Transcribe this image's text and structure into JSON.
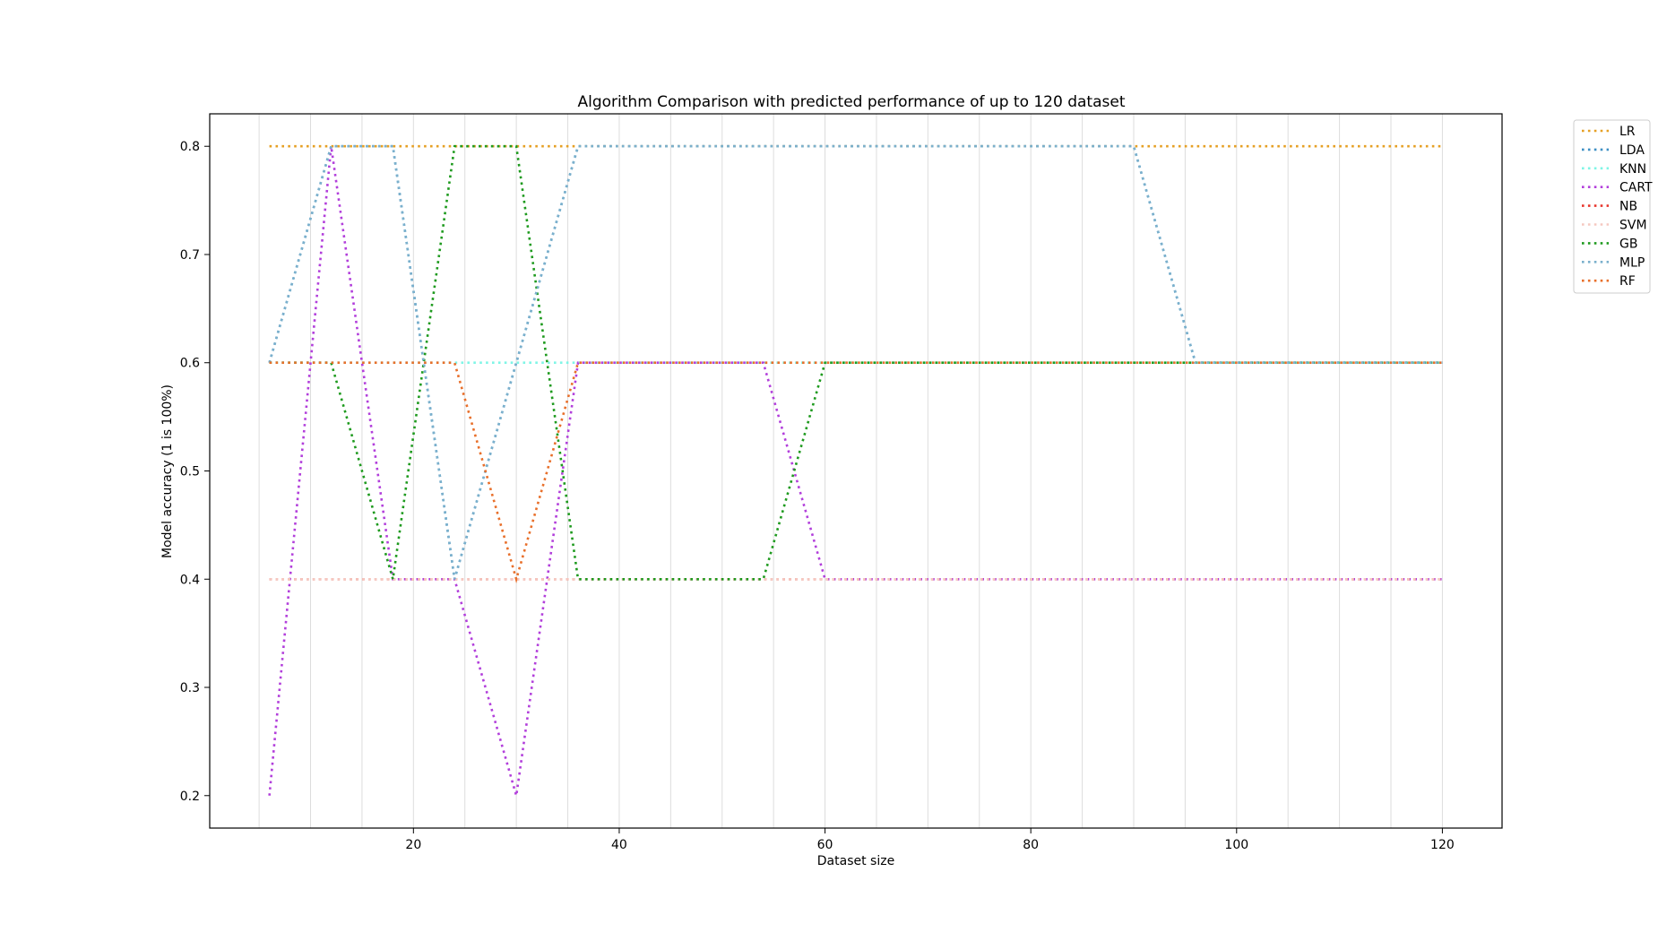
{
  "chart_data": {
    "type": "line",
    "title": "Algorithm Comparison with predicted performance of up to 120 dataset",
    "xlabel": "Dataset size",
    "ylabel": "Model accuracy (1 is 100%)",
    "xlim": [
      0.2,
      125.8
    ],
    "ylim": [
      0.17,
      0.83
    ],
    "xticks": [
      20,
      40,
      60,
      80,
      100,
      120
    ],
    "yticks": [
      0.2,
      0.3,
      0.4,
      0.5,
      0.6,
      0.7,
      0.8
    ],
    "vertical_gridlines": [
      5,
      10,
      15,
      20,
      25,
      30,
      35,
      40,
      45,
      50,
      55,
      60,
      65,
      70,
      75,
      80,
      85,
      90,
      95,
      100,
      105,
      110,
      115,
      120
    ],
    "grid": "vertical only",
    "line_style": "dotted",
    "legend_position": "outside top-right",
    "x": [
      6,
      12,
      18,
      24,
      30,
      36,
      42,
      48,
      54,
      60,
      66,
      72,
      78,
      84,
      90,
      96,
      102,
      108,
      114,
      120
    ],
    "series": [
      {
        "name": "LR",
        "color": "#e6a024",
        "values": [
          0.8,
          0.8,
          0.8,
          0.8,
          0.8,
          0.8,
          0.8,
          0.8,
          0.8,
          0.8,
          0.8,
          0.8,
          0.8,
          0.8,
          0.8,
          0.8,
          0.8,
          0.8,
          0.8,
          0.8
        ]
      },
      {
        "name": "LDA",
        "color": "#3d8fc4",
        "values": [
          0.6,
          0.8,
          0.8,
          0.4,
          0.6,
          0.8,
          0.8,
          0.8,
          0.8,
          0.8,
          0.8,
          0.8,
          0.8,
          0.8,
          0.8,
          0.6,
          0.6,
          0.6,
          0.6,
          0.6
        ]
      },
      {
        "name": "KNN",
        "color": "#7ff5e6",
        "values": [
          0.6,
          0.6,
          0.6,
          0.6,
          0.6,
          0.6,
          0.6,
          0.6,
          0.6,
          0.6,
          0.6,
          0.6,
          0.6,
          0.6,
          0.6,
          0.6,
          0.6,
          0.6,
          0.6,
          0.6
        ]
      },
      {
        "name": "CART",
        "color": "#b23fdb",
        "values": [
          0.2,
          0.8,
          0.4,
          0.4,
          0.2,
          0.6,
          0.6,
          0.6,
          0.6,
          0.4,
          0.4,
          0.4,
          0.4,
          0.4,
          0.4,
          0.4,
          0.4,
          0.4,
          0.4,
          0.4
        ]
      },
      {
        "name": "NB",
        "color": "#e8352c",
        "values": [
          0.4,
          0.4,
          0.4,
          0.4,
          0.4,
          0.4,
          0.4,
          0.4,
          0.4,
          0.4,
          0.4,
          0.4,
          0.4,
          0.4,
          0.4,
          0.4,
          0.4,
          0.4,
          0.4,
          0.4
        ]
      },
      {
        "name": "SVM",
        "color": "#f5c8c0",
        "values": [
          0.4,
          0.4,
          0.4,
          0.4,
          0.4,
          0.4,
          0.4,
          0.4,
          0.4,
          0.4,
          0.4,
          0.4,
          0.4,
          0.4,
          0.4,
          0.4,
          0.4,
          0.4,
          0.4,
          0.4
        ]
      },
      {
        "name": "GB",
        "color": "#1e9a1e",
        "values": [
          0.6,
          0.6,
          0.4,
          0.8,
          0.8,
          0.4,
          0.4,
          0.4,
          0.4,
          0.6,
          0.6,
          0.6,
          0.6,
          0.6,
          0.6,
          0.6,
          0.6,
          0.6,
          0.6,
          0.6
        ]
      },
      {
        "name": "MLP",
        "color": "#7bb0cc",
        "values": [
          0.6,
          0.8,
          0.8,
          0.4,
          0.6,
          0.8,
          0.8,
          0.8,
          0.8,
          0.8,
          0.8,
          0.8,
          0.8,
          0.8,
          0.8,
          0.6,
          0.6,
          0.6,
          0.6,
          0.6
        ]
      },
      {
        "name": "RF",
        "color": "#e86f2a",
        "values": [
          0.6,
          0.6,
          0.6,
          0.6,
          0.4,
          0.6,
          0.6,
          0.6,
          0.6,
          0.6,
          0.6,
          0.6,
          0.6,
          0.6,
          0.6,
          0.6,
          0.6,
          0.6,
          0.6,
          0.6
        ]
      }
    ]
  }
}
